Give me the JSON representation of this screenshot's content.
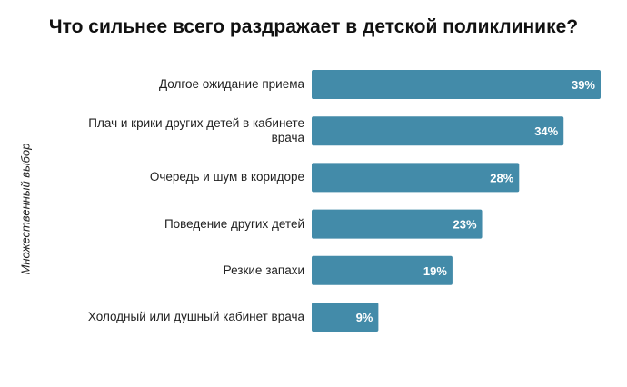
{
  "chart_data": {
    "type": "bar",
    "orientation": "horizontal",
    "title": "Что сильнее всего раздражает в детской поликлинике?",
    "ylabel": "Множественный выбор",
    "categories": [
      "Долгое ожидание приема",
      "Плач и крики других детей в кабинете врача",
      "Очередь и шум в коридоре",
      "Поведение других детей",
      "Резкие запахи",
      "Холодный или душный кабинет врача"
    ],
    "values": [
      39,
      34,
      28,
      23,
      19,
      9
    ],
    "data_labels": [
      "39%",
      "34%",
      "28%",
      "23%",
      "19%",
      "9%"
    ],
    "unit": "%",
    "grid": false,
    "legend": "none",
    "colors": {
      "bar": "#438BA9",
      "label": "#ffffff"
    }
  }
}
